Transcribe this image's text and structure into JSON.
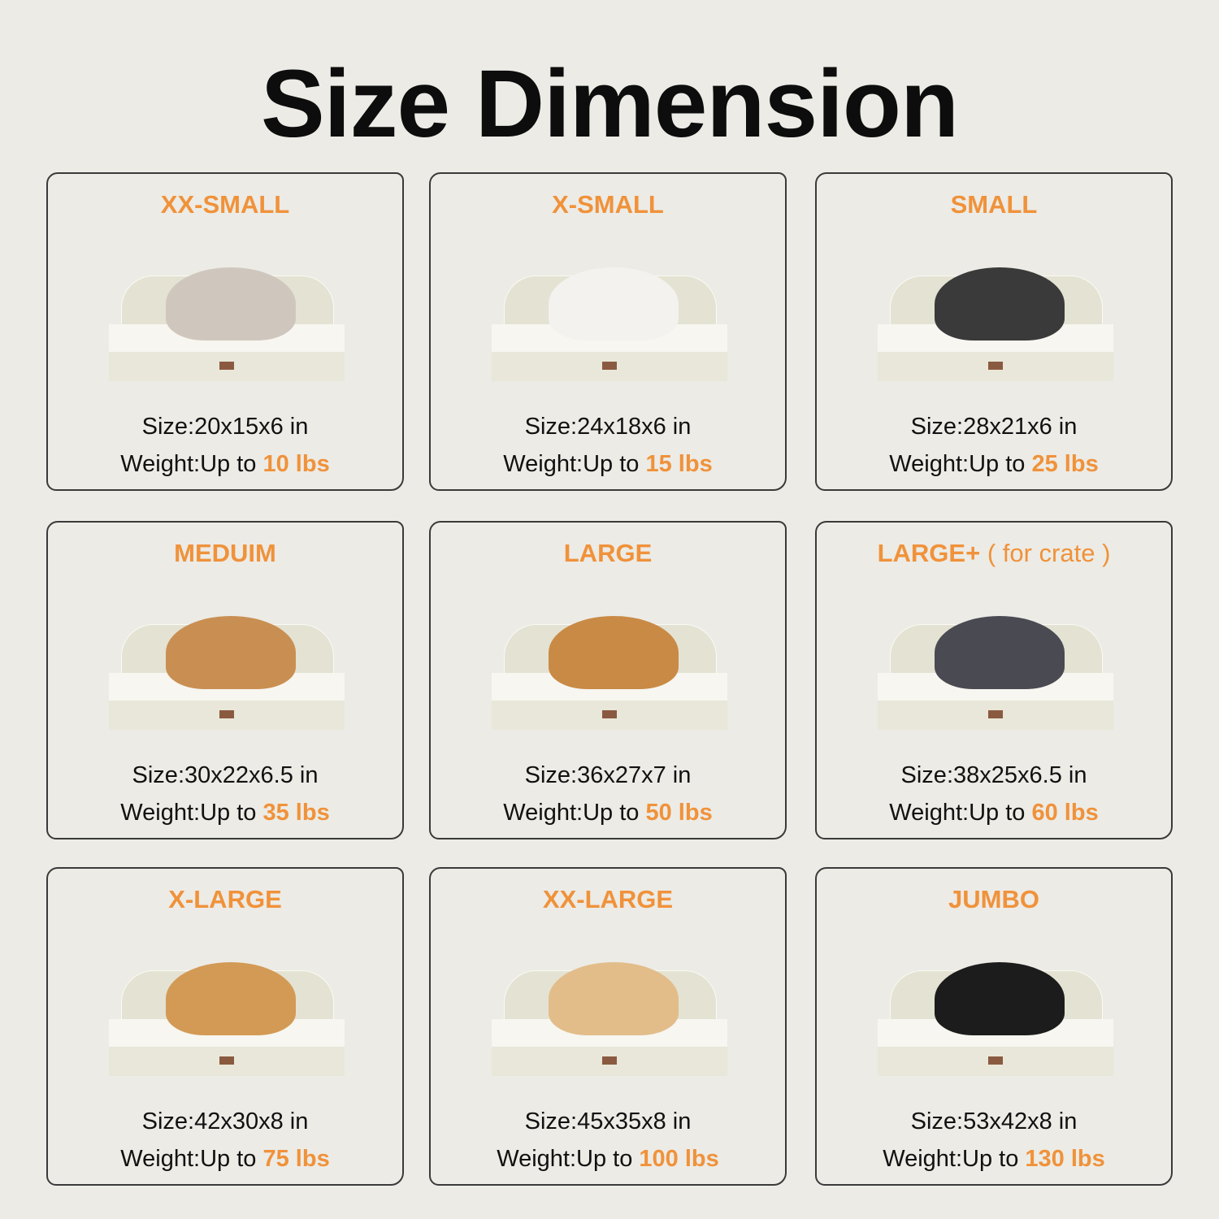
{
  "title": "Size Dimension",
  "accent_color": "#f0923a",
  "size_label": "Size",
  "weight_label": "Weight",
  "weight_prefix": "Up to",
  "cards": [
    {
      "name": "XX-SMALL",
      "sub": "",
      "size": "20x15x6 in",
      "weight": "10 lbs",
      "pet": "cat",
      "pet_color": "#cfc7bd"
    },
    {
      "name": "X-SMALL",
      "sub": "",
      "size": "24x18x6 in",
      "weight": "15 lbs",
      "pet": "pomeranian",
      "pet_color": "#f4f2ee"
    },
    {
      "name": "SMALL",
      "sub": "",
      "size": "28x21x6 in",
      "weight": "25 lbs",
      "pet": "schnauzer",
      "pet_color": "#3a3a3a"
    },
    {
      "name": "MEDUIM",
      "sub": "",
      "size": "30x22x6.5 in",
      "weight": "35 lbs",
      "pet": "corgi",
      "pet_color": "#c98f52"
    },
    {
      "name": "LARGE",
      "sub": "",
      "size": "36x27x7 in",
      "weight": "50 lbs",
      "pet": "golden-retriever",
      "pet_color": "#c98a45"
    },
    {
      "name": "LARGE+",
      "sub": "( for crate )",
      "size": "38x25x6.5 in",
      "weight": "60 lbs",
      "pet": "australian-shepherd",
      "pet_color": "#4a4a52"
    },
    {
      "name": "X-LARGE",
      "sub": "",
      "size": "42x30x8 in",
      "weight": "75 lbs",
      "pet": "golden-retriever",
      "pet_color": "#d39a55"
    },
    {
      "name": "XX-LARGE",
      "sub": "",
      "size": "45x35x8 in",
      "weight": "100 lbs",
      "pet": "labrador",
      "pet_color": "#e2bd8a"
    },
    {
      "name": "JUMBO",
      "sub": "",
      "size": "53x42x8 in",
      "weight": "130 lbs",
      "pet": "bernese-mountain-dog",
      "pet_color": "#1c1c1c"
    }
  ]
}
